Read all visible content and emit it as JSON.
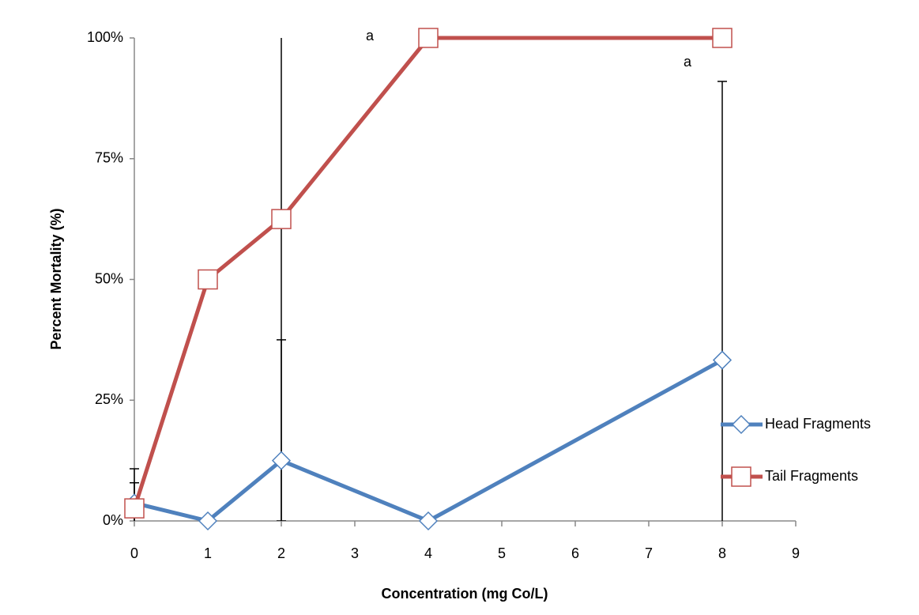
{
  "chart_data": {
    "type": "line",
    "xlabel": "Concentration (mg Co/L)",
    "ylabel": "Percent Mortality (%)",
    "x": [
      0,
      1,
      2,
      4,
      8
    ],
    "series": [
      {
        "name": "Head Fragments",
        "color": "#4f81bd",
        "marker": "diamond",
        "values": [
          3.7,
          0,
          12.5,
          0,
          33.3
        ],
        "errors": [
          7.1,
          0,
          25,
          0,
          57.7
        ]
      },
      {
        "name": "Tail Fragments",
        "color": "#c0504d",
        "marker": "square",
        "values": [
          2.6,
          50,
          62.5,
          100,
          100
        ],
        "errors": [
          5.3,
          0,
          62.5,
          0,
          0
        ]
      }
    ],
    "xlim": [
      0,
      9
    ],
    "xticks": [
      0,
      1,
      2,
      3,
      4,
      5,
      6,
      7,
      8,
      9
    ],
    "ylim": [
      0,
      100
    ],
    "yticks": [
      {
        "value": 0,
        "label": "0%"
      },
      {
        "value": 25,
        "label": "25%"
      },
      {
        "value": 50,
        "label": "50%"
      },
      {
        "value": 75,
        "label": "75%"
      },
      {
        "value": 100,
        "label": "100%"
      }
    ],
    "annotations": [
      "a",
      "a"
    ],
    "grid": false,
    "legend": "right"
  }
}
